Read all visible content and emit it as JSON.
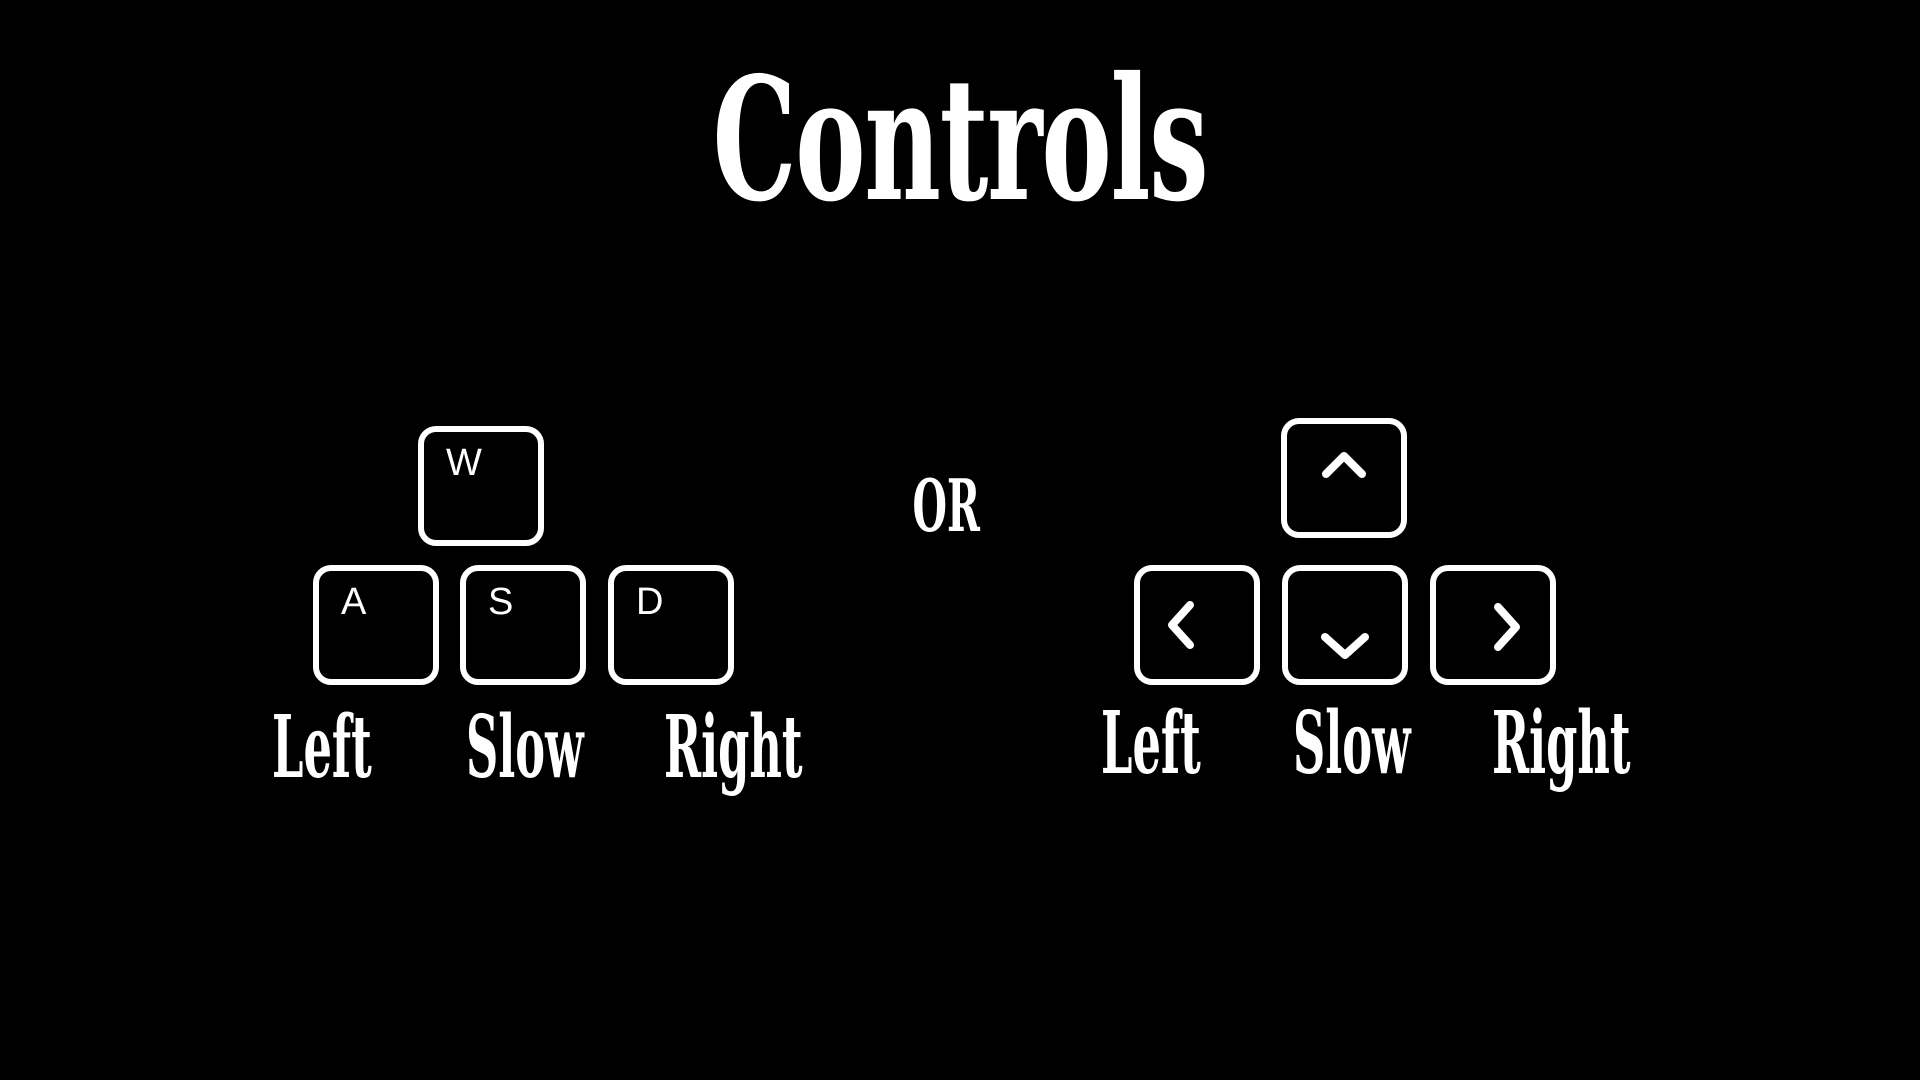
{
  "title": "Controls",
  "separator": "OR",
  "wasd_group": {
    "keys": {
      "up": "W",
      "left": "A",
      "down": "S",
      "right": "D"
    },
    "labels": {
      "left": "Left",
      "slow": "Slow",
      "right": "Right"
    }
  },
  "arrow_group": {
    "icons": {
      "up": "chevron-up-icon",
      "left": "chevron-left-icon",
      "down": "chevron-down-icon",
      "right": "chevron-right-icon"
    },
    "labels": {
      "left": "Left",
      "slow": "Slow",
      "right": "Right"
    }
  },
  "colors": {
    "background": "#000000",
    "foreground": "#ffffff"
  }
}
